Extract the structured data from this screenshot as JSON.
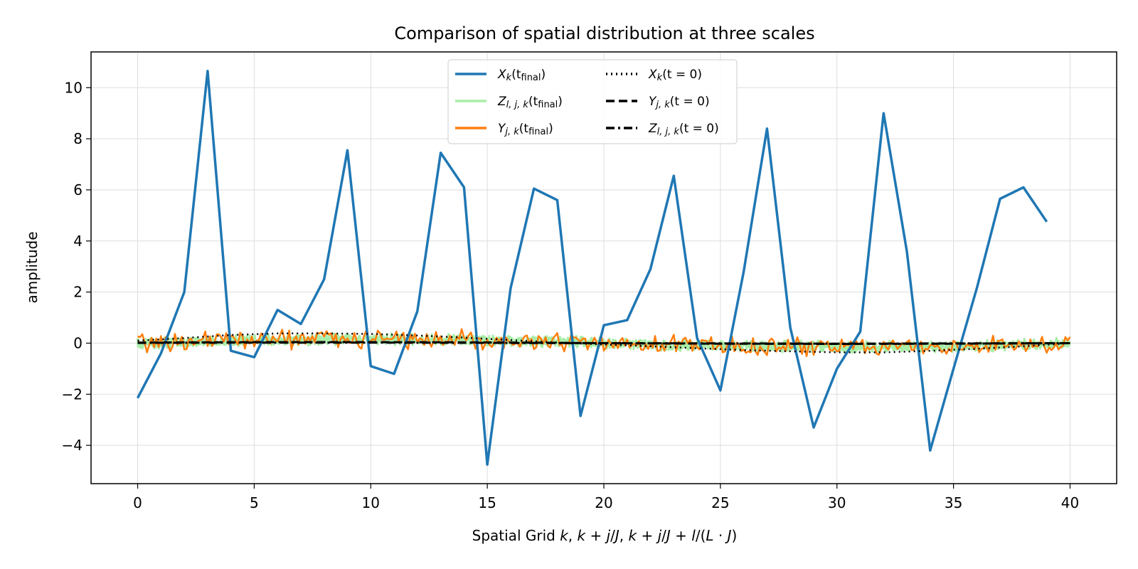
{
  "chart_data": {
    "type": "line",
    "title": "Comparison of spatial distribution at three scales",
    "xlabel": "Spatial Grid k,  k + j/J,  k + j/J + l/(L · J)",
    "ylabel": "amplitude",
    "xlim": [
      -2,
      42
    ],
    "ylim": [
      -5.5,
      11.4
    ],
    "x_ticks": [
      0,
      5,
      10,
      15,
      20,
      25,
      30,
      35,
      40
    ],
    "y_ticks": [
      -4,
      -2,
      0,
      2,
      4,
      6,
      8,
      10
    ],
    "x_tick_labels": [
      "0",
      "5",
      "10",
      "15",
      "20",
      "25",
      "30",
      "35",
      "40"
    ],
    "y_tick_labels": [
      "−4",
      "−2",
      "0",
      "2",
      "4",
      "6",
      "8",
      "10"
    ],
    "grid": true,
    "legend_position": "top-center",
    "series": [
      {
        "name": "X_k(t_final)",
        "color": "#1f77b4",
        "style": "solid",
        "x": [
          0,
          1,
          2,
          3,
          4,
          5,
          6,
          7,
          8,
          9,
          10,
          11,
          12,
          13,
          14,
          15,
          16,
          17,
          18,
          19,
          20,
          21,
          22,
          23,
          24,
          25,
          26,
          27,
          28,
          29,
          30,
          31,
          32,
          33,
          34,
          35,
          36,
          37,
          38,
          39
        ],
        "y": [
          -2.15,
          -0.4,
          2.0,
          10.65,
          -0.3,
          -0.55,
          1.3,
          0.75,
          2.5,
          7.55,
          -0.9,
          -1.2,
          1.25,
          7.45,
          6.1,
          -4.75,
          2.15,
          6.05,
          5.6,
          -2.85,
          0.7,
          0.9,
          2.9,
          6.55,
          0.2,
          -1.85,
          2.8,
          8.4,
          0.6,
          -3.3,
          -1.0,
          0.45,
          9.0,
          3.6,
          -4.2,
          -1.0,
          2.15,
          5.65,
          6.1,
          4.75
        ]
      },
      {
        "name": "Z_{l,j,k}(t_final)",
        "color": "#a8eea8",
        "style": "solid",
        "x_range": [
          0,
          40
        ],
        "amplitude": 0.25
      },
      {
        "name": "Y_{j,k}(t_final)",
        "color": "#ff7f0e",
        "style": "solid",
        "x_range": [
          0,
          40
        ],
        "amplitude": 0.45
      },
      {
        "name": "X_k(t=0)",
        "color": "#000000",
        "style": "dotted",
        "x": [
          0,
          2,
          4,
          6,
          8,
          10,
          12,
          14,
          16,
          18,
          20,
          22,
          24,
          26,
          28,
          30,
          32,
          34,
          36,
          38,
          40
        ],
        "y": [
          0.1,
          0.2,
          0.32,
          0.38,
          0.38,
          0.36,
          0.3,
          0.22,
          0.12,
          0.02,
          -0.05,
          -0.12,
          -0.2,
          -0.27,
          -0.32,
          -0.36,
          -0.36,
          -0.3,
          -0.22,
          -0.12,
          0.0
        ]
      },
      {
        "name": "Y_{j,k}(t=0)",
        "color": "#000000",
        "style": "dashed",
        "x": [
          0,
          5,
          10,
          15,
          20,
          25,
          30,
          35,
          40
        ],
        "y": [
          0.02,
          0.04,
          0.04,
          0.03,
          0.0,
          -0.02,
          -0.03,
          -0.02,
          0.0
        ]
      },
      {
        "name": "Z_{l,j,k}(t=0)",
        "color": "#000000",
        "style": "dashdot",
        "x": [
          0,
          5,
          10,
          15,
          20,
          25,
          30,
          35,
          40
        ],
        "y": [
          0.01,
          0.02,
          0.02,
          0.01,
          0.0,
          -0.01,
          -0.02,
          -0.01,
          0.0
        ]
      }
    ]
  },
  "legend": {
    "items": [
      {
        "base": "X",
        "sub": "k",
        "arg": "(t",
        "argsub": "final",
        "close": ")"
      },
      {
        "base": "Z",
        "sub": "l, j, k",
        "arg": "(t",
        "argsub": "final",
        "close": ")"
      },
      {
        "base": "Y",
        "sub": "j, k",
        "arg": "(t",
        "argsub": "final",
        "close": ")"
      },
      {
        "base": "X",
        "sub": "k",
        "arg": "(t = 0)",
        "argsub": "",
        "close": ""
      },
      {
        "base": "Y",
        "sub": "j, k",
        "arg": "(t = 0)",
        "argsub": "",
        "close": ""
      },
      {
        "base": "Z",
        "sub": "l, j, k",
        "arg": "(t = 0)",
        "argsub": "",
        "close": ""
      }
    ]
  }
}
